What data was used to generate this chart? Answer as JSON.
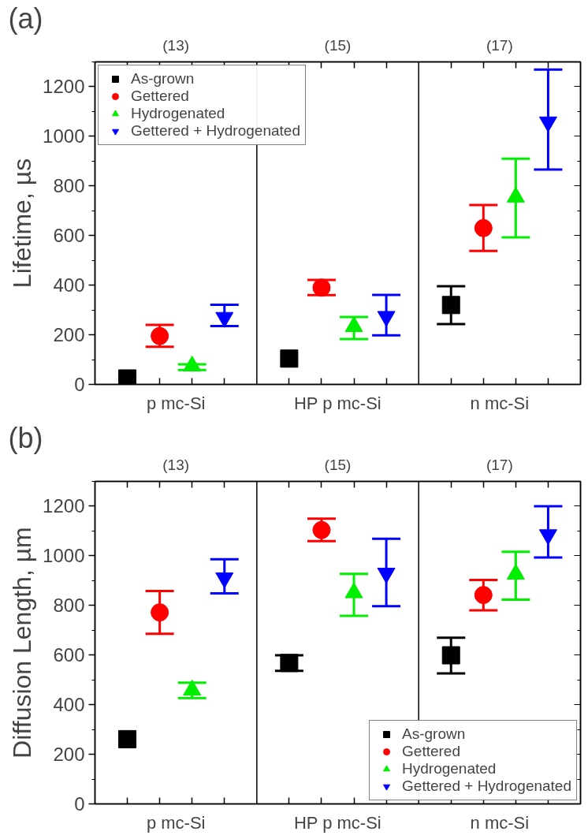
{
  "chart_data": [
    {
      "type": "scatter",
      "title": "(a)",
      "ylabel": "Lifetime, µs",
      "categories": [
        "p mc-Si",
        "HP p mc-Si",
        "n mc-Si"
      ],
      "annotations": [
        "(13)",
        "(15)",
        "(17)"
      ],
      "ylim": [
        0,
        1300
      ],
      "yticks": [
        0,
        200,
        400,
        600,
        800,
        1000,
        1200
      ],
      "grid": false,
      "legend": "top left",
      "series": [
        {
          "name": "As-grown",
          "color": "#000000",
          "marker": "square",
          "values": [
            24,
            104,
            320
          ],
          "errors": [
            null,
            null,
            [
              243,
              396
            ]
          ]
        },
        {
          "name": "Gettered",
          "color": "#ff0000",
          "marker": "circle",
          "values": [
            195,
            390,
            630
          ],
          "errors": [
            [
              152,
              240
            ],
            [
              360,
              421
            ],
            [
              538,
              723
            ]
          ]
        },
        {
          "name": "Hydrogenated",
          "color": "#00ee00",
          "marker": "triangle",
          "values": [
            74,
            233,
            755
          ],
          "errors": [
            [
              58,
              81
            ],
            [
              183,
              272
            ],
            [
              593,
              910
            ]
          ]
        },
        {
          "name": "Gettered + Hydrogenated",
          "color": "#0000ff",
          "marker": "triangle",
          "values": [
            270,
            274,
            1058
          ],
          "errors": [
            [
              235,
              321
            ],
            [
              198,
              361
            ],
            [
              866,
              1269
            ]
          ]
        }
      ]
    },
    {
      "type": "scatter",
      "title": "(b)",
      "ylabel": "Diffusion Length, µm",
      "categories": [
        "p mc-Si",
        "HP p mc-Si",
        "n mc-Si"
      ],
      "annotations": [
        "(13)",
        "(15)",
        "(17)"
      ],
      "ylim": [
        0,
        1300
      ],
      "yticks": [
        0,
        200,
        400,
        600,
        800,
        1000,
        1200
      ],
      "grid": false,
      "legend": "bottom right",
      "series": [
        {
          "name": "As-grown",
          "color": "#000000",
          "marker": "square",
          "values": [
            261,
            568,
            599
          ],
          "errors": [
            null,
            [
              536,
              599
            ],
            [
              526,
              670
            ]
          ]
        },
        {
          "name": "Gettered",
          "color": "#ff0000",
          "marker": "circle",
          "values": [
            772,
            1104,
            842
          ],
          "errors": [
            [
              686,
              858
            ],
            [
              1059,
              1150
            ],
            [
              780,
              903
            ]
          ]
        },
        {
          "name": "Hydrogenated",
          "color": "#00ee00",
          "marker": "triangle",
          "values": [
            459,
            851,
            926
          ],
          "errors": [
            [
              427,
              489
            ],
            [
              758,
              927
            ],
            [
              823,
              1016
            ]
          ]
        },
        {
          "name": "Gettered + Hydrogenated",
          "color": "#0000ff",
          "marker": "triangle",
          "values": [
            911,
            930,
            1085
          ],
          "errors": [
            [
              849,
              986
            ],
            [
              797,
              1069
            ],
            [
              993,
              1200
            ]
          ]
        }
      ]
    }
  ]
}
